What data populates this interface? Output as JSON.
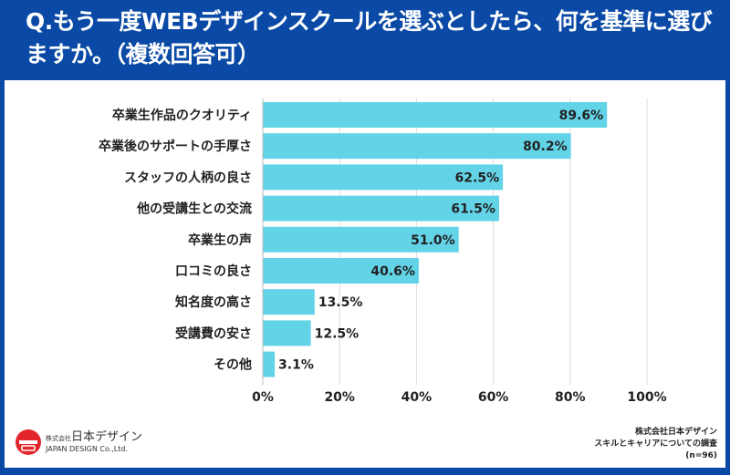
{
  "title": "Q.もう一度WEBデザインスクールを選ぶとしたら、何を基準に選びますか。（複数回答可）",
  "chart_data": {
    "type": "bar",
    "orientation": "horizontal",
    "categories": [
      "卒業生作品のクオリティ",
      "卒業後のサポートの手厚さ",
      "スタッフの人柄の良さ",
      "他の受講生との交流",
      "卒業生の声",
      "口コミの良さ",
      "知名度の高さ",
      "受講費の安さ",
      "その他"
    ],
    "values": [
      89.6,
      80.2,
      62.5,
      61.5,
      51.0,
      40.6,
      13.5,
      12.5,
      3.1
    ],
    "data_labels": [
      "89.6%",
      "80.2%",
      "62.5%",
      "61.5%",
      "51.0%",
      "40.6%",
      "13.5%",
      "12.5%",
      "3.1%"
    ],
    "xlim": [
      0,
      100
    ],
    "x_ticks": [
      "0%",
      "20%",
      "40%",
      "60%",
      "80%",
      "100%"
    ],
    "grid": true,
    "bar_color": "#63d4e8"
  },
  "logo": {
    "name": "日本デザイン",
    "prefix": "株式会社",
    "en": "JAPAN DESIGN Co.,Ltd."
  },
  "source": {
    "line1": "株式会社日本デザイン",
    "line2": "スキルとキャリアについての調査",
    "line3": "(n=96)"
  }
}
